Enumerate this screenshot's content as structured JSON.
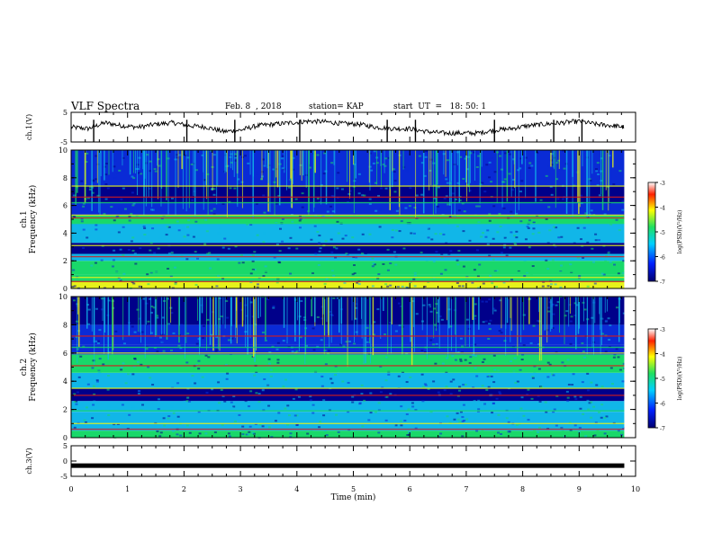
{
  "header": {
    "title": "VLF Spectra",
    "date": "Feb. 8  , 2018",
    "station": "station= KAP",
    "start": "start  UT  =   18: 50: 1"
  },
  "colors": {
    "spec_deep": "#00008a",
    "spec_blue": "#0a2bd6",
    "spec_cyan": "#11b6e8",
    "spec_green": "#19d86a",
    "spec_yellow": "#e6f21a",
    "spec_red": "#d41c1c"
  },
  "chart_data": [
    {
      "type": "line",
      "panel": "ch1-waveform",
      "ylabel": "ch.1(V)",
      "ylim": [
        -5,
        5
      ],
      "yticks": [
        "5",
        "-5"
      ],
      "x_unit": "min",
      "x": [
        0.0,
        0.3,
        0.6,
        0.9,
        1.2,
        1.5,
        1.8,
        2.1,
        2.4,
        2.7,
        3.0,
        3.3,
        3.6,
        3.9,
        4.2,
        4.5,
        4.8,
        5.1,
        5.4,
        5.7,
        6.0,
        6.3,
        6.6,
        6.9,
        7.2,
        7.5,
        7.8,
        8.1,
        8.4,
        8.7,
        9.0,
        9.3,
        9.6,
        9.8
      ],
      "y": [
        0.0,
        -0.5,
        1.5,
        0.5,
        0.0,
        1.0,
        1.5,
        0.5,
        0.0,
        -1.5,
        -1.0,
        0.5,
        1.0,
        1.5,
        2.0,
        1.8,
        1.2,
        1.0,
        0.0,
        -0.5,
        -0.5,
        -1.5,
        -2.0,
        -2.0,
        -2.0,
        -1.0,
        -0.5,
        0.5,
        1.0,
        1.5,
        2.0,
        1.0,
        0.5,
        0.0
      ]
    },
    {
      "type": "heatmap",
      "panel": "ch1-spectrogram",
      "ylabel": "ch.1 Frequency  (kHz)",
      "ylim": [
        0,
        10
      ],
      "yticks": [
        "0",
        "2",
        "4",
        "6",
        "8",
        "10"
      ],
      "colorbar": {
        "label": "log(PSD)(V²/Hz)",
        "range": [
          -7,
          -3
        ],
        "ticks": [
          "-3",
          "-4",
          "-5",
          "-6",
          "-7"
        ]
      },
      "bands_khz": [
        {
          "from": 0.0,
          "to": 0.5,
          "level": 4
        },
        {
          "from": 0.5,
          "to": 1.0,
          "level": 3
        },
        {
          "from": 1.0,
          "to": 2.0,
          "level": 3
        },
        {
          "from": 2.0,
          "to": 2.5,
          "level": 2
        },
        {
          "from": 2.5,
          "to": 3.3,
          "level": 0
        },
        {
          "from": 3.3,
          "to": 4.7,
          "level": 2
        },
        {
          "from": 4.7,
          "to": 5.3,
          "level": 3
        },
        {
          "from": 5.3,
          "to": 6.2,
          "level": 1
        },
        {
          "from": 6.2,
          "to": 7.4,
          "level": 0
        },
        {
          "from": 7.4,
          "to": 10.0,
          "level": 1
        }
      ],
      "tones_khz": [
        0.5,
        0.8,
        1.2,
        2.3,
        3.1,
        4.7,
        5.1,
        5.3,
        6.2,
        6.6,
        7.4
      ]
    },
    {
      "type": "heatmap",
      "panel": "ch2-spectrogram",
      "ylabel": "ch.2 Frequency  (kHz)",
      "ylim": [
        0,
        10
      ],
      "yticks": [
        "0",
        "2",
        "4",
        "6",
        "8",
        "10"
      ],
      "colorbar": {
        "label": "log(PSD)(V²/Hz)",
        "range": [
          -7,
          -3
        ],
        "ticks": [
          "-3",
          "-4",
          "-5",
          "-6",
          "-7"
        ]
      },
      "bands_khz": [
        {
          "from": 0.0,
          "to": 0.5,
          "level": 3
        },
        {
          "from": 0.5,
          "to": 1.8,
          "level": 2
        },
        {
          "from": 1.8,
          "to": 2.6,
          "level": 2
        },
        {
          "from": 2.6,
          "to": 3.5,
          "level": 0
        },
        {
          "from": 3.5,
          "to": 4.6,
          "level": 2
        },
        {
          "from": 4.6,
          "to": 5.9,
          "level": 3
        },
        {
          "from": 5.9,
          "to": 6.6,
          "level": 1
        },
        {
          "from": 6.6,
          "to": 8.0,
          "level": 1
        },
        {
          "from": 8.0,
          "to": 10.0,
          "level": 0
        }
      ],
      "tones_khz": [
        0.6,
        1.0,
        1.9,
        3.0,
        3.5,
        4.7,
        5.1,
        6.0,
        6.4,
        7.2
      ]
    },
    {
      "type": "line",
      "panel": "ch3-waveform",
      "ylabel": "ch.3(V)",
      "ylim": [
        -5,
        5
      ],
      "yticks": [
        "5",
        "0",
        "-5"
      ],
      "x": [
        0,
        9.8
      ],
      "y": [
        -1.5,
        -1.5
      ]
    }
  ],
  "xaxis": {
    "label": "Time  (min)",
    "xlim": [
      0,
      10
    ],
    "ticks": [
      "0",
      "1",
      "2",
      "3",
      "4",
      "5",
      "6",
      "7",
      "8",
      "9",
      "10"
    ]
  }
}
